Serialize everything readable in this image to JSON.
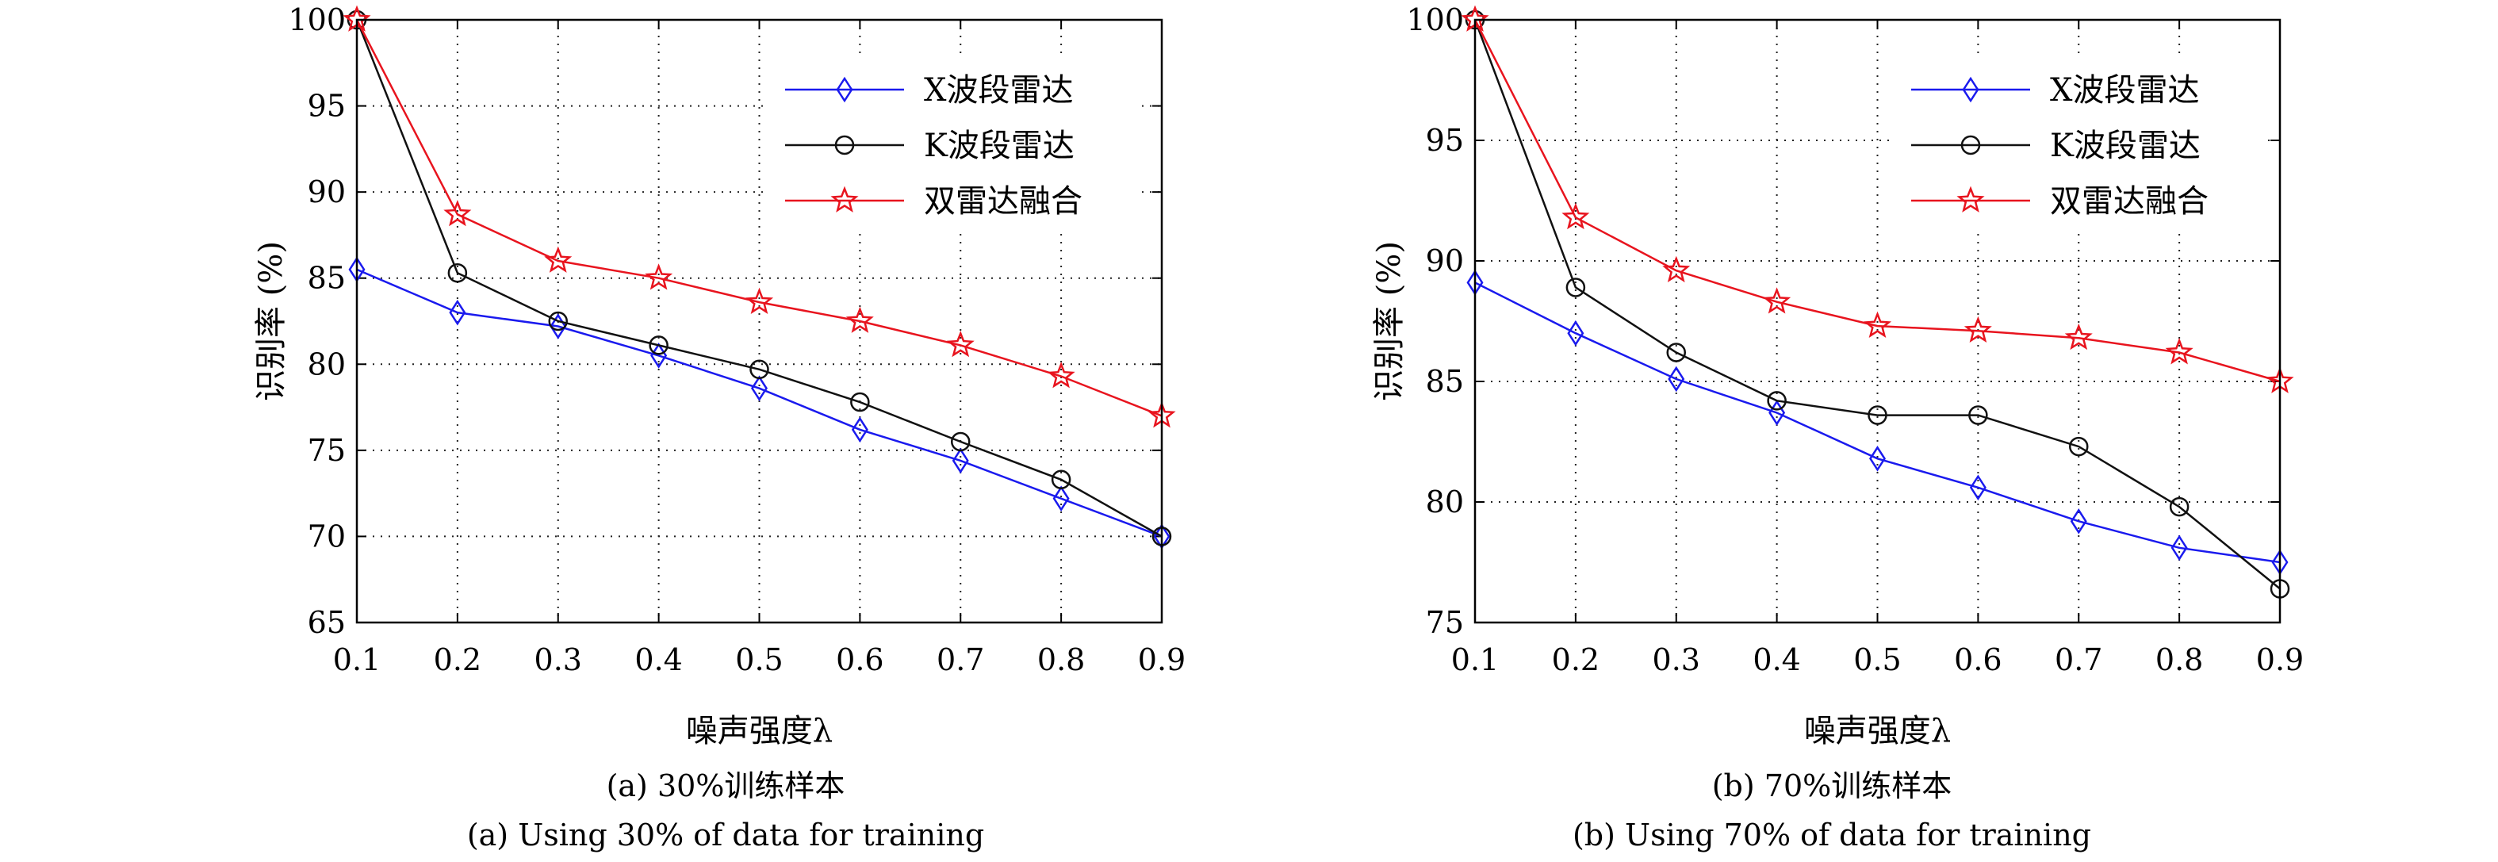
{
  "chart_data": [
    {
      "type": "line",
      "xlabel": "噪声强度λ",
      "ylabel": "识别率 (%)",
      "xlim": [
        0.1,
        0.9
      ],
      "ylim": [
        65,
        100
      ],
      "x": [
        0.1,
        0.2,
        0.3,
        0.4,
        0.5,
        0.6,
        0.7,
        0.8,
        0.9
      ],
      "x_ticks": [
        "0.1",
        "0.2",
        "0.3",
        "0.4",
        "0.5",
        "0.6",
        "0.7",
        "0.8",
        "0.9"
      ],
      "y_ticks": [
        65,
        70,
        75,
        80,
        85,
        90,
        95,
        100
      ],
      "grid": true,
      "legend_position": "top-right",
      "series": [
        {
          "name": "X波段雷达",
          "color": "#1a1aee",
          "marker": "diamond",
          "values": [
            85.5,
            83.0,
            82.2,
            80.5,
            78.6,
            76.2,
            74.4,
            72.2,
            70.0
          ]
        },
        {
          "name": "K波段雷达",
          "color": "#111111",
          "marker": "circle",
          "values": [
            100.0,
            85.3,
            82.5,
            81.1,
            79.7,
            77.8,
            75.5,
            73.3,
            70.0
          ]
        },
        {
          "name": "双雷达融合",
          "color": "#e8141e",
          "marker": "star",
          "values": [
            100.0,
            88.7,
            86.0,
            85.0,
            83.6,
            82.5,
            81.1,
            79.3,
            77.0
          ]
        }
      ],
      "caption_cn": "(a) 30%训练样本",
      "caption_en": "(a) Using 30% of data for training"
    },
    {
      "type": "line",
      "xlabel": "噪声强度λ",
      "ylabel": "识别率 (%)",
      "xlim": [
        0.1,
        0.9
      ],
      "ylim": [
        75,
        100
      ],
      "x": [
        0.1,
        0.2,
        0.3,
        0.4,
        0.5,
        0.6,
        0.7,
        0.8,
        0.9
      ],
      "x_ticks": [
        "0.1",
        "0.2",
        "0.3",
        "0.4",
        "0.5",
        "0.6",
        "0.7",
        "0.8",
        "0.9"
      ],
      "y_ticks": [
        75,
        80,
        85,
        90,
        95,
        100
      ],
      "grid": true,
      "legend_position": "top-right",
      "series": [
        {
          "name": "X波段雷达",
          "color": "#1a1aee",
          "marker": "diamond",
          "values": [
            89.1,
            87.0,
            85.1,
            83.7,
            81.8,
            80.6,
            79.2,
            78.1,
            77.5
          ]
        },
        {
          "name": "K波段雷达",
          "color": "#111111",
          "marker": "circle",
          "values": [
            100.0,
            88.9,
            86.2,
            84.2,
            83.6,
            83.6,
            82.3,
            79.8,
            76.4
          ]
        },
        {
          "name": "双雷达融合",
          "color": "#e8141e",
          "marker": "star",
          "values": [
            100.0,
            91.8,
            89.6,
            88.3,
            87.3,
            87.1,
            86.8,
            86.2,
            85.0
          ]
        }
      ],
      "caption_cn": "(b) 70%训练样本",
      "caption_en": "(b) Using 70% of data for training"
    }
  ]
}
